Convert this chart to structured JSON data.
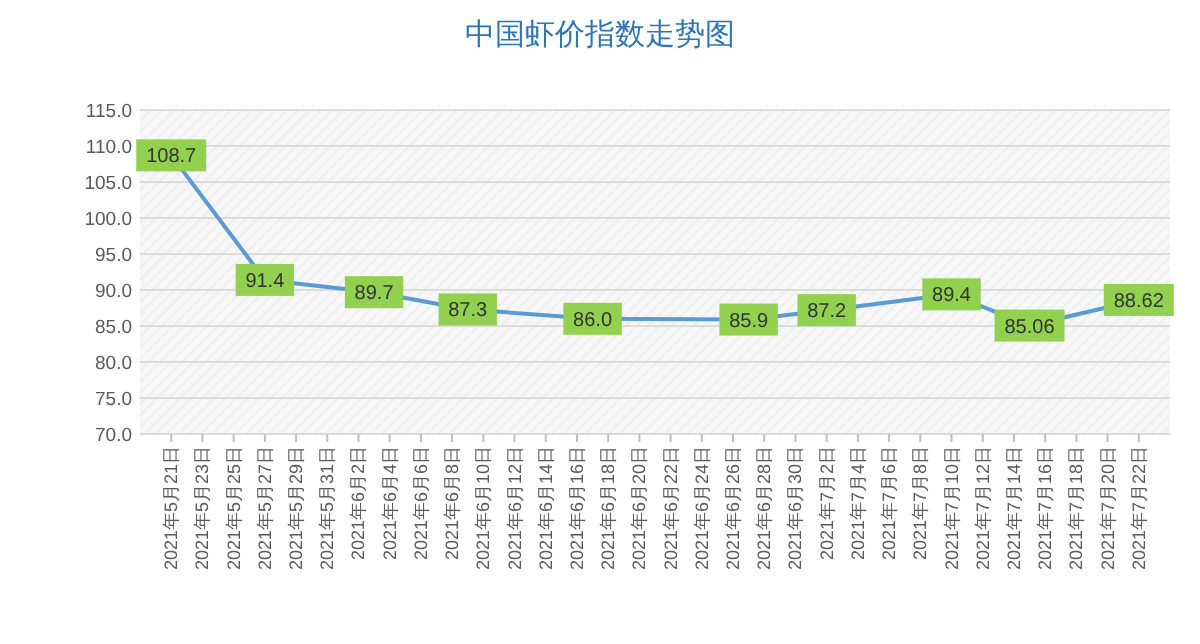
{
  "chart_data": {
    "type": "line",
    "title": "中国虾价指数走势图",
    "x": [
      "2021-05-21",
      "2021-05-27",
      "2021-06-03",
      "2021-06-09",
      "2021-06-17",
      "2021-06-27",
      "2021-07-02",
      "2021-07-10",
      "2021-07-15",
      "2021-07-22"
    ],
    "series": [
      {
        "color": "#5b9bd5",
        "values": [
          108.7,
          91.4,
          89.7,
          87.3,
          86.0,
          85.9,
          87.2,
          89.4,
          85.06,
          88.62
        ],
        "value_labels": [
          "108.7",
          "91.4",
          "89.7",
          "87.3",
          "86.0",
          "85.9",
          "87.2",
          "89.4",
          "85.06",
          "88.62"
        ]
      }
    ],
    "xlim": [
      "2021-05-19",
      "2021-07-24"
    ],
    "xticks": [
      {
        "value": "2021-05-21",
        "label": "2021年5月21日"
      },
      {
        "value": "2021-05-23",
        "label": "2021年5月23日"
      },
      {
        "value": "2021-05-25",
        "label": "2021年5月25日"
      },
      {
        "value": "2021-05-27",
        "label": "2021年5月27日"
      },
      {
        "value": "2021-05-29",
        "label": "2021年5月29日"
      },
      {
        "value": "2021-05-31",
        "label": "2021年5月31日"
      },
      {
        "value": "2021-06-02",
        "label": "2021年6月2日"
      },
      {
        "value": "2021-06-04",
        "label": "2021年6月4日"
      },
      {
        "value": "2021-06-06",
        "label": "2021年6月6日"
      },
      {
        "value": "2021-06-08",
        "label": "2021年6月8日"
      },
      {
        "value": "2021-06-10",
        "label": "2021年6月10日"
      },
      {
        "value": "2021-06-12",
        "label": "2021年6月12日"
      },
      {
        "value": "2021-06-14",
        "label": "2021年6月14日"
      },
      {
        "value": "2021-06-16",
        "label": "2021年6月16日"
      },
      {
        "value": "2021-06-18",
        "label": "2021年6月18日"
      },
      {
        "value": "2021-06-20",
        "label": "2021年6月20日"
      },
      {
        "value": "2021-06-22",
        "label": "2021年6月22日"
      },
      {
        "value": "2021-06-24",
        "label": "2021年6月24日"
      },
      {
        "value": "2021-06-26",
        "label": "2021年6月26日"
      },
      {
        "value": "2021-06-28",
        "label": "2021年6月28日"
      },
      {
        "value": "2021-06-30",
        "label": "2021年6月30日"
      },
      {
        "value": "2021-07-02",
        "label": "2021年7月2日"
      },
      {
        "value": "2021-07-04",
        "label": "2021年7月4日"
      },
      {
        "value": "2021-07-06",
        "label": "2021年7月6日"
      },
      {
        "value": "2021-07-08",
        "label": "2021年7月8日"
      },
      {
        "value": "2021-07-10",
        "label": "2021年7月10日"
      },
      {
        "value": "2021-07-12",
        "label": "2021年7月12日"
      },
      {
        "value": "2021-07-14",
        "label": "2021年7月14日"
      },
      {
        "value": "2021-07-16",
        "label": "2021年7月16日"
      },
      {
        "value": "2021-07-18",
        "label": "2021年7月18日"
      },
      {
        "value": "2021-07-20",
        "label": "2021年7月20日"
      },
      {
        "value": "2021-07-22",
        "label": "2021年7月22日"
      }
    ],
    "ylim": [
      70,
      115
    ],
    "yticks": [
      {
        "value": 70,
        "label": "70.0"
      },
      {
        "value": 75,
        "label": "75.0"
      },
      {
        "value": 80,
        "label": "80.0"
      },
      {
        "value": 85,
        "label": "85.0"
      },
      {
        "value": 90,
        "label": "90.0"
      },
      {
        "value": 95,
        "label": "95.0"
      },
      {
        "value": 100,
        "label": "100.0"
      },
      {
        "value": 105,
        "label": "105.0"
      },
      {
        "value": 110,
        "label": "110.0"
      },
      {
        "value": 115,
        "label": "115.0"
      }
    ],
    "grid": "y",
    "line_style": "solid",
    "marker": "square"
  }
}
